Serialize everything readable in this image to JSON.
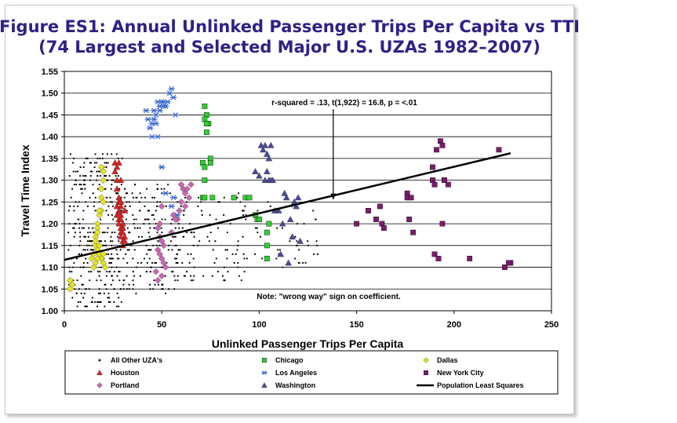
{
  "chart_data": {
    "type": "scatter",
    "title": "Figure ES1: Annual Unlinked Passenger Trips Per Capita vs TTI",
    "subtitle": "(74 Largest and Selected Major U.S. UZAs 1982–2007)",
    "xlabel": "Unlinked Passenger Trips Per Capita",
    "ylabel": "Travel Time Index",
    "xlim": [
      0,
      250
    ],
    "ylim": [
      1.0,
      1.55
    ],
    "x_ticks": [
      "0",
      "50",
      "100",
      "150",
      "200",
      "250"
    ],
    "y_ticks": [
      "1.00",
      "1.05",
      "1.10",
      "1.15",
      "1.20",
      "1.25",
      "1.30",
      "1.35",
      "1.40",
      "1.45",
      "1.50",
      "1.55"
    ],
    "grid": "horizontal",
    "annotations": [
      {
        "text": "r-squared = .13, t(1,922) = 16.8, p = <.01",
        "x": 138,
        "y": 1.255
      },
      {
        "text": "Note:  \"wrong way\" sign on coefficient."
      }
    ],
    "legend": {
      "placement": "bottom",
      "entries": [
        "All Other UZA's",
        "Chicago",
        "Dallas",
        "Houston",
        "Los Angeles",
        "New York City",
        "Portland",
        "Washington",
        "Population Least Squares"
      ]
    },
    "trendline": {
      "name": "Population Least Squares",
      "x": [
        0,
        229
      ],
      "y": [
        1.117,
        1.362
      ]
    },
    "series": [
      {
        "name": "All Other UZA's",
        "marker": "dot",
        "color": "#000000",
        "clusters": [
          {
            "x": [
              2,
              30
            ],
            "y": [
              1.01,
              1.36
            ],
            "n": 360
          },
          {
            "x": [
              30,
              60
            ],
            "y": [
              1.04,
              1.3
            ],
            "n": 200
          },
          {
            "x": [
              60,
              95
            ],
            "y": [
              1.07,
              1.27
            ],
            "n": 90
          },
          {
            "x": [
              95,
              130
            ],
            "y": [
              1.1,
              1.25
            ],
            "n": 40
          }
        ]
      },
      {
        "name": "Chicago",
        "marker": "square",
        "color": "#33cc33",
        "x": [
          72,
          73,
          72,
          74,
          73,
          71,
          72,
          75,
          75,
          72,
          76,
          87,
          93,
          95,
          98,
          99,
          100,
          104,
          104,
          104,
          105,
          73,
          71,
          72
        ],
        "y": [
          1.47,
          1.45,
          1.44,
          1.43,
          1.43,
          1.34,
          1.33,
          1.35,
          1.34,
          1.3,
          1.26,
          1.26,
          1.26,
          1.26,
          1.22,
          1.21,
          1.21,
          1.18,
          1.15,
          1.12,
          1.2,
          1.41,
          1.26,
          1.26
        ]
      },
      {
        "name": "Dallas",
        "marker": "diamond",
        "color": "#e6e61a",
        "x": [
          3,
          19,
          20,
          20,
          19,
          19,
          20,
          19,
          18,
          17,
          17,
          17,
          16,
          16,
          16,
          17,
          18,
          19,
          20,
          21,
          20,
          18,
          17,
          16,
          15,
          3,
          4,
          15,
          14,
          16,
          18
        ],
        "y": [
          1.05,
          1.33,
          1.32,
          1.3,
          1.28,
          1.26,
          1.25,
          1.23,
          1.22,
          1.2,
          1.19,
          1.18,
          1.17,
          1.16,
          1.15,
          1.14,
          1.13,
          1.12,
          1.11,
          1.1,
          1.13,
          1.15,
          1.12,
          1.11,
          1.1,
          1.07,
          1.06,
          1.13,
          1.12,
          1.16,
          1.23
        ]
      },
      {
        "name": "Houston",
        "marker": "triangle",
        "color": "#e02020",
        "x": [
          26,
          27,
          28,
          26,
          27,
          29,
          27,
          28,
          28,
          29,
          27,
          28,
          29,
          27,
          28,
          29,
          30,
          28,
          29,
          30,
          29,
          30,
          31,
          29,
          30,
          31,
          30,
          31,
          29,
          28
        ],
        "y": [
          1.34,
          1.33,
          1.34,
          1.32,
          1.3,
          1.3,
          1.28,
          1.26,
          1.25,
          1.24,
          1.24,
          1.23,
          1.22,
          1.22,
          1.21,
          1.21,
          1.2,
          1.2,
          1.19,
          1.19,
          1.18,
          1.18,
          1.17,
          1.17,
          1.16,
          1.16,
          1.15,
          1.23,
          1.25,
          1.22
        ]
      },
      {
        "name": "Los Angeles",
        "marker": "asterisk",
        "color": "#3366cc",
        "x": [
          50,
          51,
          52,
          53,
          54,
          55,
          56,
          57,
          48,
          49,
          47,
          46,
          45,
          44,
          43,
          42,
          45,
          48,
          50,
          47,
          49,
          46,
          52,
          56,
          55,
          58,
          51
        ],
        "y": [
          1.48,
          1.47,
          1.47,
          1.48,
          1.5,
          1.51,
          1.49,
          1.45,
          1.48,
          1.46,
          1.45,
          1.44,
          1.43,
          1.42,
          1.44,
          1.46,
          1.4,
          1.4,
          1.33,
          1.43,
          1.47,
          1.46,
          1.27,
          1.26,
          1.24,
          1.22,
          1.48
        ]
      },
      {
        "name": "New York City",
        "marker": "square",
        "color": "#7b1c6e",
        "x": [
          150,
          156,
          160,
          163,
          162,
          164,
          176,
          176,
          177,
          179,
          189,
          189,
          190,
          191,
          193,
          194,
          195,
          195,
          197,
          190,
          192,
          194,
          208,
          223,
          226,
          229,
          228,
          178
        ],
        "y": [
          1.2,
          1.23,
          1.21,
          1.2,
          1.24,
          1.19,
          1.27,
          1.26,
          1.21,
          1.18,
          1.33,
          1.3,
          1.29,
          1.37,
          1.39,
          1.38,
          1.3,
          1.3,
          1.29,
          1.13,
          1.12,
          1.2,
          1.12,
          1.37,
          1.1,
          1.11,
          1.11,
          1.26
        ]
      },
      {
        "name": "Portland",
        "marker": "diamond",
        "color": "#cc66b3",
        "x": [
          60,
          61,
          62,
          63,
          64,
          60,
          62,
          59,
          65,
          56,
          58,
          50,
          49,
          48,
          49,
          50,
          51,
          48,
          49,
          50,
          51,
          52,
          47,
          50,
          48,
          55,
          57
        ],
        "y": [
          1.29,
          1.28,
          1.27,
          1.28,
          1.26,
          1.25,
          1.24,
          1.23,
          1.29,
          1.22,
          1.21,
          1.24,
          1.2,
          1.19,
          1.17,
          1.16,
          1.15,
          1.14,
          1.13,
          1.12,
          1.11,
          1.1,
          1.09,
          1.08,
          1.07,
          1.18,
          1.21
        ]
      },
      {
        "name": "Washington",
        "marker": "triangle",
        "color": "#4a4a9a",
        "x": [
          98,
          100,
          101,
          102,
          103,
          104,
          105,
          106,
          106,
          104,
          103,
          105,
          107,
          108,
          110,
          112,
          115,
          117,
          118,
          120,
          119,
          114,
          113,
          116,
          121,
          111
        ],
        "y": [
          1.32,
          1.31,
          1.38,
          1.37,
          1.38,
          1.36,
          1.35,
          1.38,
          1.3,
          1.32,
          1.3,
          1.3,
          1.3,
          1.23,
          1.23,
          1.2,
          1.11,
          1.17,
          1.25,
          1.26,
          1.24,
          1.26,
          1.27,
          1.21,
          1.16,
          1.13
        ]
      }
    ]
  }
}
